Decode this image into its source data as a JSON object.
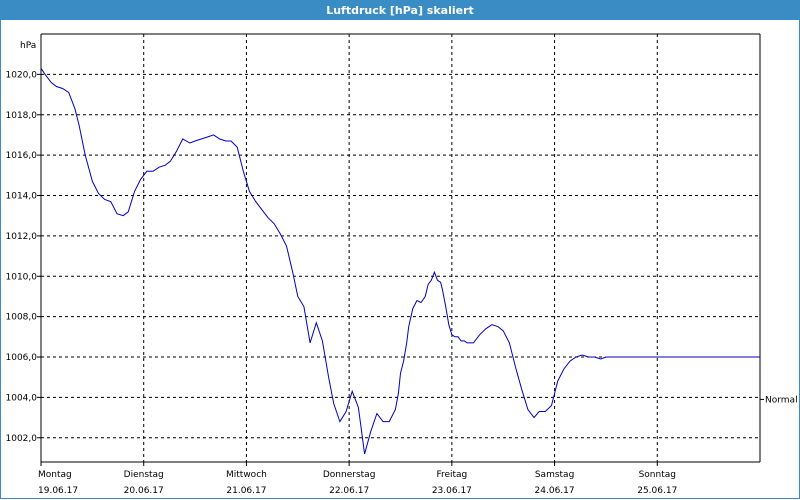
{
  "window": {
    "title": "Luftdruck [hPa] skaliert"
  },
  "chart_data": {
    "type": "line",
    "title": "Luftdruck [hPa] skaliert",
    "ylabel": "hPa",
    "xlabel": "",
    "ylim": [
      1000.8,
      1022.0
    ],
    "xlim": [
      0,
      7
    ],
    "grid": true,
    "y_ticks": [
      1002.0,
      1004.0,
      1006.0,
      1008.0,
      1010.0,
      1012.0,
      1014.0,
      1016.0,
      1018.0,
      1020.0
    ],
    "y_tick_labels": [
      "1002,0",
      "1004,0",
      "1006,0",
      "1008,0",
      "1010,0",
      "1012,0",
      "1014,0",
      "1016,0",
      "1018,0",
      "1020,0"
    ],
    "x_ticks": [
      {
        "pos": 0,
        "day": "Montag",
        "date": "19.06.17"
      },
      {
        "pos": 1,
        "day": "Dienstag",
        "date": "20.06.17"
      },
      {
        "pos": 2,
        "day": "Mittwoch",
        "date": "21.06.17"
      },
      {
        "pos": 3,
        "day": "Donnerstag",
        "date": "22.06.17"
      },
      {
        "pos": 4,
        "day": "Freitag",
        "date": "23.06.17"
      },
      {
        "pos": 5,
        "day": "Samstag",
        "date": "24.06.17"
      },
      {
        "pos": 6,
        "day": "Sonntag",
        "date": "25.06.17"
      }
    ],
    "reference": {
      "label": "Normal",
      "value": 1003.9
    },
    "line_color": "#0000c0",
    "series": [
      {
        "x": [
          0.0,
          0.04,
          0.1,
          0.15,
          0.21,
          0.27,
          0.33,
          0.37,
          0.43,
          0.5,
          0.56,
          0.62,
          0.68,
          0.74,
          0.8,
          0.85,
          0.91,
          0.97,
          1.03,
          1.09,
          1.15,
          1.21,
          1.26,
          1.32,
          1.38,
          1.45,
          1.5,
          1.56,
          1.62,
          1.68,
          1.74,
          1.8,
          1.85,
          1.91,
          1.97,
          2.03,
          2.09,
          2.15,
          2.21,
          2.27,
          2.33,
          2.39,
          2.45,
          2.5,
          2.56,
          2.62,
          2.68,
          2.74,
          2.8,
          2.85,
          2.91,
          2.97,
          3.03,
          3.09,
          3.15,
          3.21,
          3.27,
          3.33,
          3.39,
          3.45,
          3.48,
          3.5,
          3.53,
          3.56,
          3.58,
          3.62,
          3.66,
          3.7,
          3.74,
          3.77,
          3.8,
          3.83,
          3.86,
          3.89,
          3.91,
          3.94,
          3.97,
          4.0,
          4.03,
          4.06,
          4.09,
          4.12,
          4.15,
          4.21,
          4.27,
          4.33,
          4.39,
          4.45,
          4.5,
          4.56,
          4.62,
          4.68,
          4.74,
          4.8,
          4.85,
          4.91,
          4.97,
          5.0,
          5.03,
          5.09,
          5.15,
          5.21,
          5.27,
          5.33,
          5.39,
          5.45,
          5.5,
          5.56,
          5.62,
          5.68,
          5.74,
          5.8,
          5.85,
          5.91,
          5.97,
          6.0,
          6.06,
          6.12,
          6.18,
          6.24,
          6.3,
          6.36,
          6.42,
          6.48,
          6.54,
          6.6,
          6.66,
          6.72,
          6.78,
          6.84,
          6.9,
          6.96,
          7.0
        ],
        "y": [
          1020.3,
          1020.0,
          1019.6,
          1019.4,
          1019.3,
          1019.1,
          1018.3,
          1017.5,
          1016.0,
          1014.7,
          1014.1,
          1013.8,
          1013.7,
          1013.1,
          1013.0,
          1013.2,
          1014.2,
          1014.8,
          1015.2,
          1015.2,
          1015.4,
          1015.5,
          1015.7,
          1016.2,
          1016.8,
          1016.6,
          1016.7,
          1016.8,
          1016.9,
          1017.0,
          1016.8,
          1016.7,
          1016.7,
          1016.4,
          1015.2,
          1014.2,
          1013.7,
          1013.3,
          1012.9,
          1012.6,
          1012.1,
          1011.5,
          1010.2,
          1009.0,
          1008.5,
          1006.7,
          1007.7,
          1006.8,
          1005.0,
          1003.7,
          1002.8,
          1003.3,
          1004.3,
          1003.5,
          1001.2,
          1002.3,
          1003.2,
          1002.8,
          1002.8,
          1003.4,
          1004.2,
          1005.2,
          1005.8,
          1006.7,
          1007.5,
          1008.4,
          1008.8,
          1008.7,
          1009.0,
          1009.6,
          1009.8,
          1010.2,
          1009.8,
          1009.7,
          1009.3,
          1008.5,
          1007.6,
          1007.1,
          1007.0,
          1007.0,
          1006.8,
          1006.8,
          1006.7,
          1006.7,
          1007.1,
          1007.4,
          1007.6,
          1007.5,
          1007.3,
          1006.7,
          1005.5,
          1004.4,
          1003.4,
          1003.0,
          1003.3,
          1003.3,
          1003.6,
          1004.2,
          1004.8,
          1005.4,
          1005.8,
          1006.0,
          1006.1,
          1006.0,
          1006.0,
          1005.9,
          1006.0,
          1006.0,
          1006.0,
          1006.0,
          1006.0,
          1006.0,
          1006.0,
          1006.0,
          1006.0,
          1006.0,
          1006.0,
          1006.0,
          1006.0,
          1006.0,
          1006.0,
          1006.0,
          1006.0,
          1006.0,
          1006.0,
          1006.0,
          1006.0,
          1006.0,
          1006.0,
          1006.0,
          1006.0,
          1006.0,
          1006.0
        ]
      }
    ]
  }
}
